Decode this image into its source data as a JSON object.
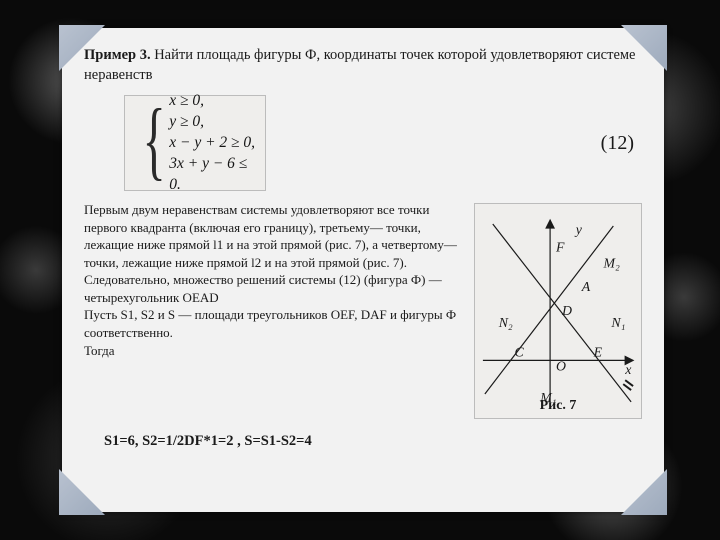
{
  "title_prefix": "Пример 3.",
  "title_rest": " Найти площадь фигуры Ф, координаты точек которой удовлетворяют системе неравенств",
  "system": {
    "lines": [
      "x ≥ 0,",
      "y ≥ 0,",
      "x − y + 2 ≥ 0,",
      "3x + y − 6 ≤ 0."
    ],
    "eq_number": "(12)"
  },
  "body": "Первым двум неравенствам системы удовлетворяют все точки первого квадранта (включая его границу), третьему— точки, лежащие ниже прямой l1 и на этой прямой (рис. 7), а четвертому— точки, лежащие ниже прямой l2 и на этой прямой (рис. 7).\nСледовательно, множество решений системы (12) (фигура Ф) — четырехугольник OEAD\nПусть S1, S2 и S — площади треугольников OEF, DAF и фигуры Ф соответственно.\nТогда",
  "result": "S1=6,   S2=1/2DF*1=2 ,  S=S1-S2=4",
  "figure": {
    "labels": {
      "F": "F",
      "A": "A",
      "D": "D",
      "C": "C",
      "O": "O",
      "E": "E",
      "M1": "M₁",
      "M2": "M₂",
      "N1": "N₁",
      "N2": "N₂",
      "x": "x",
      "y": "y"
    },
    "caption": "Рис. 7"
  },
  "colors": {
    "panel_bg": "#f2f2f2",
    "background": "#0a0a0a",
    "text": "#1a1a1a",
    "eq_box_bg": "#efeeec",
    "eq_box_border": "#bcbcbc"
  }
}
